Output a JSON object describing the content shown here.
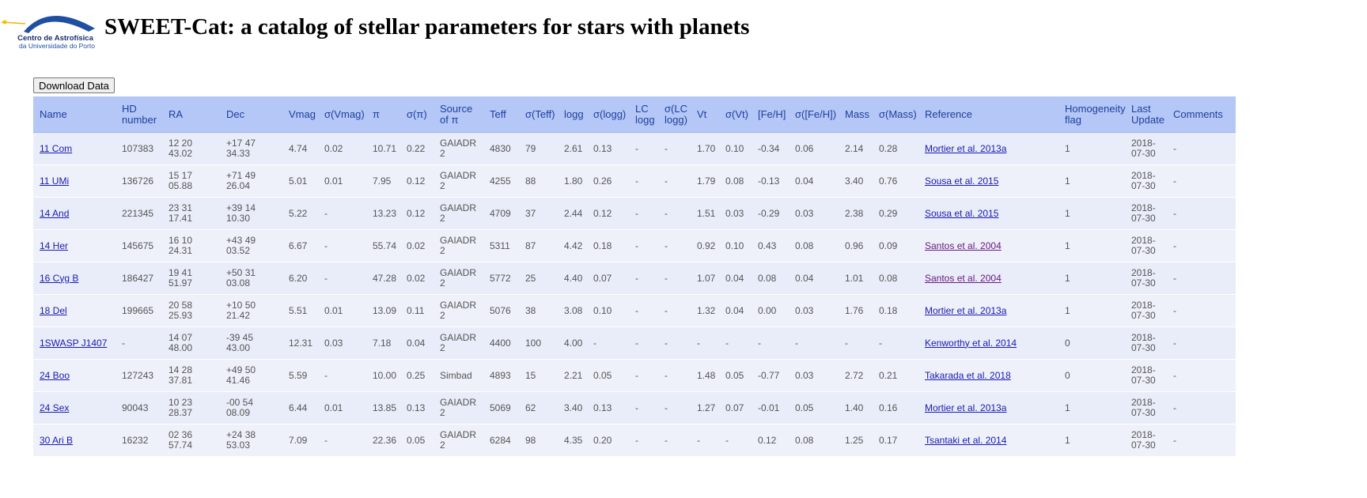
{
  "header": {
    "title": "SWEET-Cat: a catalog of stellar parameters for stars with planets",
    "logo_line1": "Centro de Astrofísica",
    "logo_line2": "da Universidade do Porto"
  },
  "download_button": "Download Data",
  "table": {
    "columns": [
      "Name",
      "HD number",
      "RA",
      "Dec",
      "Vmag",
      "σ(Vmag)",
      "π",
      "σ(π)",
      "Source of π",
      "Teff",
      "σ(Teff)",
      "logg",
      "σ(logg)",
      "LC logg",
      "σ(LC logg)",
      "Vt",
      "σ(Vt)",
      "[Fe/H]",
      "σ([Fe/H])",
      "Mass",
      "σ(Mass)",
      "Reference",
      "Homogeneity flag",
      "Last Update",
      "Comments"
    ],
    "rows": [
      [
        "11 Com",
        "107383",
        "12 20 43.02",
        "+17 47 34.33",
        "4.74",
        "0.02",
        "10.71",
        "0.22",
        "GAIADR2",
        "4830",
        "79",
        "2.61",
        "0.13",
        "-",
        "-",
        "1.70",
        "0.10",
        "-0.34",
        "0.06",
        "2.14",
        "0.28",
        "Mortier et al. 2013a",
        "1",
        "2018-07-30",
        "-"
      ],
      [
        "11 UMi",
        "136726",
        "15 17 05.88",
        "+71 49 26.04",
        "5.01",
        "0.01",
        "7.95",
        "0.12",
        "GAIADR2",
        "4255",
        "88",
        "1.80",
        "0.26",
        "-",
        "-",
        "1.79",
        "0.08",
        "-0.13",
        "0.04",
        "3.40",
        "0.76",
        "Sousa et al. 2015",
        "1",
        "2018-07-30",
        "-"
      ],
      [
        "14 And",
        "221345",
        "23 31 17.41",
        "+39 14 10.30",
        "5.22",
        "-",
        "13.23",
        "0.12",
        "GAIADR2",
        "4709",
        "37",
        "2.44",
        "0.12",
        "-",
        "-",
        "1.51",
        "0.03",
        "-0.29",
        "0.03",
        "2.38",
        "0.29",
        "Sousa et al. 2015",
        "1",
        "2018-07-30",
        "-"
      ],
      [
        "14 Her",
        "145675",
        "16 10 24.31",
        "+43 49 03.52",
        "6.67",
        "-",
        "55.74",
        "0.02",
        "GAIADR2",
        "5311",
        "87",
        "4.42",
        "0.18",
        "-",
        "-",
        "0.92",
        "0.10",
        "0.43",
        "0.08",
        "0.96",
        "0.09",
        "Santos et al. 2004",
        "1",
        "2018-07-30",
        "-"
      ],
      [
        "16 Cyg B",
        "186427",
        "19 41 51.97",
        "+50 31 03.08",
        "6.20",
        "-",
        "47.28",
        "0.02",
        "GAIADR2",
        "5772",
        "25",
        "4.40",
        "0.07",
        "-",
        "-",
        "1.07",
        "0.04",
        "0.08",
        "0.04",
        "1.01",
        "0.08",
        "Santos et al. 2004",
        "1",
        "2018-07-30",
        "-"
      ],
      [
        "18 Del",
        "199665",
        "20 58 25.93",
        "+10 50 21.42",
        "5.51",
        "0.01",
        "13.09",
        "0.11",
        "GAIADR2",
        "5076",
        "38",
        "3.08",
        "0.10",
        "-",
        "-",
        "1.32",
        "0.04",
        "0.00",
        "0.03",
        "1.76",
        "0.18",
        "Mortier et al. 2013a",
        "1",
        "2018-07-30",
        "-"
      ],
      [
        "1SWASP J1407",
        "-",
        "14 07 48.00",
        "-39 45 43.00",
        "12.31",
        "0.03",
        "7.18",
        "0.04",
        "GAIADR2",
        "4400",
        "100",
        "4.00",
        "-",
        "-",
        "-",
        "-",
        "-",
        "-",
        "-",
        "-",
        "-",
        "Kenworthy et al. 2014",
        "0",
        "2018-07-30",
        "-"
      ],
      [
        "24 Boo",
        "127243",
        "14 28 37.81",
        "+49 50 41.46",
        "5.59",
        "-",
        "10.00",
        "0.25",
        "Simbad",
        "4893",
        "15",
        "2.21",
        "0.05",
        "-",
        "-",
        "1.48",
        "0.05",
        "-0.77",
        "0.03",
        "2.72",
        "0.21",
        "Takarada et al. 2018",
        "0",
        "2018-07-30",
        "-"
      ],
      [
        "24 Sex",
        "90043",
        "10 23 28.37",
        "-00 54 08.09",
        "6.44",
        "0.01",
        "13.85",
        "0.13",
        "GAIADR2",
        "5069",
        "62",
        "3.40",
        "0.13",
        "-",
        "-",
        "1.27",
        "0.07",
        "-0.01",
        "0.05",
        "1.40",
        "0.16",
        "Mortier et al. 2013a",
        "1",
        "2018-07-30",
        "-"
      ],
      [
        "30 Ari B",
        "16232",
        "02 36 57.74",
        "+24 38 53.03",
        "7.09",
        "-",
        "22.36",
        "0.05",
        "GAIADR2",
        "6284",
        "98",
        "4.35",
        "0.20",
        "-",
        "-",
        "-",
        "-",
        "0.12",
        "0.08",
        "1.25",
        "0.17",
        "Tsantaki et al. 2014",
        "1",
        "2018-07-30",
        "-"
      ]
    ]
  }
}
